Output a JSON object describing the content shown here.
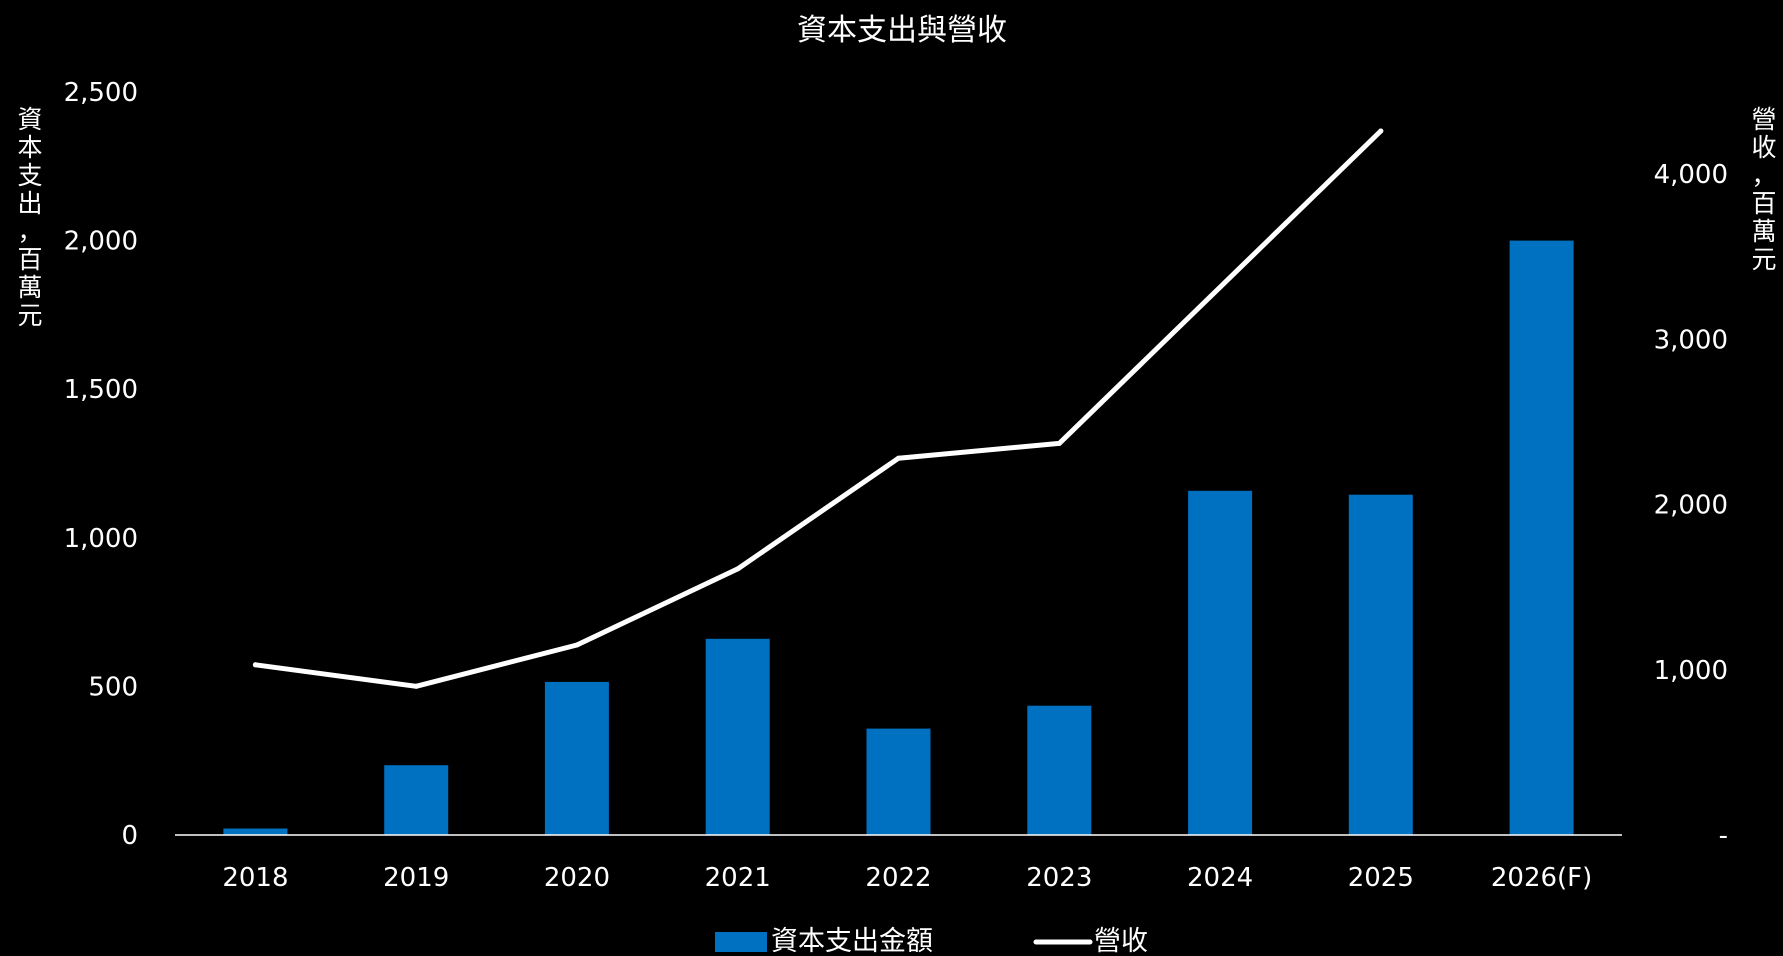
{
  "chart_data": {
    "type": "bar",
    "title": "資本支出與營收",
    "categories": [
      "2018",
      "2019",
      "2020",
      "2021",
      "2022",
      "2023",
      "2024",
      "2025",
      "2026(F)"
    ],
    "series": [
      {
        "name": "資本支出金額",
        "type": "bar",
        "axis": "left",
        "color": "#0070C0",
        "values": [
          22,
          235,
          515,
          660,
          358,
          435,
          1158,
          1145,
          2000
        ]
      },
      {
        "name": "營收",
        "type": "line",
        "axis": "right",
        "color": "#FFFFFF",
        "values": [
          1030,
          900,
          1150,
          1610,
          2280,
          2370,
          null,
          4260,
          null
        ]
      }
    ],
    "y_left": {
      "label": "資本支出，百萬元",
      "min": 0,
      "max": 2500,
      "ticks": [
        0,
        500,
        1000,
        1500,
        2000,
        2500
      ],
      "tick_labels": [
        "0",
        "500",
        "1,000",
        "1,500",
        "2,000",
        "2,500"
      ]
    },
    "y_right": {
      "label": "營收，百萬元",
      "min": 0,
      "max": 4500,
      "ticks": [
        0,
        1000,
        2000,
        3000,
        4000
      ],
      "tick_labels": [
        "-",
        "1,000",
        "2,000",
        "3,000",
        "4,000"
      ]
    },
    "grid": false,
    "legend": "bottom-center",
    "legend_entries": [
      "資本支出金額",
      "營收"
    ]
  }
}
